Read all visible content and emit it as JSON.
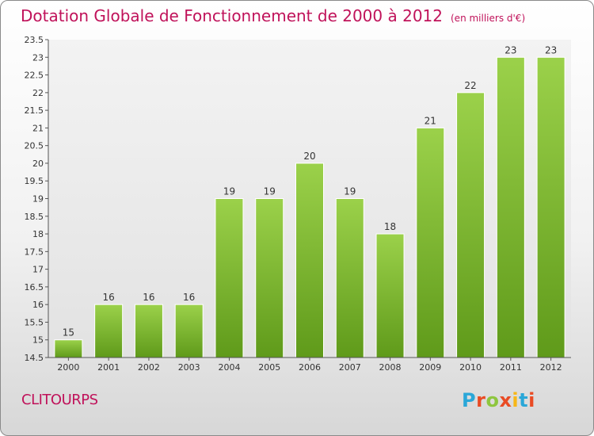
{
  "title": "Dotation Globale de Fonctionnement de 2000 à 2012",
  "subtitle": "(en milliers d'€)",
  "commune": "CLITOURPS",
  "logo": {
    "text": "Proxiti",
    "colors": [
      "#2aa7d8",
      "#e94b24",
      "#8ec63f",
      "#e94b24",
      "#f7b718",
      "#2aa7d8",
      "#e94b24"
    ]
  },
  "chart_data": {
    "type": "bar",
    "categories": [
      "2000",
      "2001",
      "2002",
      "2003",
      "2004",
      "2005",
      "2006",
      "2007",
      "2008",
      "2009",
      "2010",
      "2011",
      "2012"
    ],
    "values": [
      15,
      16,
      16,
      16,
      19,
      19,
      20,
      19,
      18,
      21,
      22,
      23,
      23
    ],
    "data_labels": [
      "15",
      "16",
      "16",
      "16",
      "19",
      "19",
      "20",
      "19",
      "18",
      "21",
      "22",
      "23",
      "23"
    ],
    "ylim": [
      14.5,
      23.5
    ],
    "yticks": [
      14.5,
      15,
      15.5,
      16,
      16.5,
      17,
      17.5,
      18,
      18.5,
      19,
      19.5,
      20,
      20.5,
      21,
      21.5,
      22,
      22.5,
      23,
      23.5
    ],
    "ytick_labels": [
      "14.5",
      "15",
      "15.5",
      "16",
      "16.5",
      "17",
      "17.5",
      "18",
      "18.5",
      "19",
      "19.5",
      "20",
      "20.5",
      "21",
      "21.5",
      "22",
      "22.5",
      "23",
      "23.5"
    ],
    "bar_color": "#7ab52e",
    "grid": false
  }
}
